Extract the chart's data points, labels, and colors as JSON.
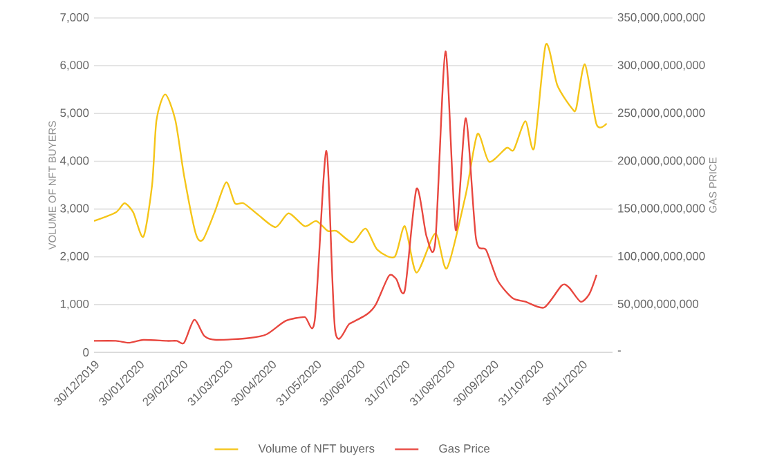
{
  "chart_data": {
    "type": "line",
    "ylabel": "VOLUME OF NFT BUYERS",
    "y2label": "GAS PRICE",
    "x": [
      "2019-12-30",
      "2020-01-14",
      "2020-01-20",
      "2020-01-26",
      "2020-02-02",
      "2020-02-08",
      "2020-02-11",
      "2020-02-17",
      "2020-02-24",
      "2020-03-01",
      "2020-03-09",
      "2020-03-14",
      "2020-03-22",
      "2020-03-30",
      "2020-04-05",
      "2020-04-11",
      "2020-04-21",
      "2020-05-03",
      "2020-05-12",
      "2020-05-23",
      "2020-05-31",
      "2020-06-08",
      "2020-06-14",
      "2020-06-25",
      "2020-07-04",
      "2020-07-12",
      "2020-07-24",
      "2020-07-31",
      "2020-08-08",
      "2020-08-21",
      "2020-08-29",
      "2020-09-11",
      "2020-09-19",
      "2020-09-27",
      "2020-10-09",
      "2020-10-14",
      "2020-10-22",
      "2020-10-28",
      "2020-11-05",
      "2020-11-13",
      "2020-11-23",
      "2020-11-26",
      "2020-12-02",
      "2020-12-10",
      "2020-12-17"
    ],
    "series": [
      {
        "name": "Volume of NFT buyers",
        "color": "#f5c518",
        "values": [
          2750,
          2930,
          3120,
          2930,
          2420,
          3510,
          4860,
          5400,
          4860,
          3700,
          2490,
          2360,
          2930,
          3560,
          3120,
          3120,
          2880,
          2620,
          2910,
          2640,
          2750,
          2540,
          2540,
          2300,
          2590,
          2150,
          2000,
          2640,
          1670,
          2490,
          1760,
          3310,
          4570,
          3990,
          4280,
          4240,
          4840,
          4280,
          6440,
          5590,
          5110,
          5110,
          6030,
          4770,
          4790
        ]
      },
      {
        "name": "Gas Price",
        "color": "#e8473f",
        "axis": "y2",
        "x": [
          "2019-12-30",
          "2020-01-14",
          "2020-01-23",
          "2020-02-02",
          "2020-02-18",
          "2020-02-25",
          "2020-03-01",
          "2020-03-08",
          "2020-03-15",
          "2020-03-23",
          "2020-04-15",
          "2020-04-27",
          "2020-05-10",
          "2020-05-23",
          "2020-05-30",
          "2020-06-07",
          "2020-06-13",
          "2020-06-23",
          "2020-07-05",
          "2020-07-11",
          "2020-07-20",
          "2020-07-25",
          "2020-07-31",
          "2020-08-08",
          "2020-08-15",
          "2020-08-21",
          "2020-08-28",
          "2020-09-04",
          "2020-09-11",
          "2020-09-18",
          "2020-09-25",
          "2020-10-03",
          "2020-10-13",
          "2020-10-22",
          "2020-11-04",
          "2020-11-16",
          "2020-11-21",
          "2020-11-29",
          "2020-12-05",
          "2020-12-10"
        ],
        "values": [
          12000000000,
          12000000000,
          10000000000,
          13000000000,
          12000000000,
          12000000000,
          10000000000,
          34000000000,
          17000000000,
          13000000000,
          15000000000,
          19000000000,
          33000000000,
          37000000000,
          34000000000,
          211000000000,
          23000000000,
          30000000000,
          40000000000,
          50000000000,
          80000000000,
          77000000000,
          65000000000,
          171000000000,
          121000000000,
          116000000000,
          315000000000,
          128000000000,
          245000000000,
          119000000000,
          107000000000,
          75000000000,
          57000000000,
          53000000000,
          47000000000,
          70000000000,
          68000000000,
          53000000000,
          61000000000,
          81000000000
        ]
      }
    ],
    "xlim": [
      "2019-12-30",
      "2020-12-21"
    ],
    "xticks": [
      {
        "value": "2019-12-30",
        "label": "30/12/2019"
      },
      {
        "value": "2020-01-30",
        "label": "30/01/2020"
      },
      {
        "value": "2020-02-29",
        "label": "29/02/2020"
      },
      {
        "value": "2020-03-31",
        "label": "31/03/2020"
      },
      {
        "value": "2020-04-30",
        "label": "30/04/2020"
      },
      {
        "value": "2020-05-31",
        "label": "31/05/2020"
      },
      {
        "value": "2020-06-30",
        "label": "30/06/2020"
      },
      {
        "value": "2020-07-31",
        "label": "31/07/2020"
      },
      {
        "value": "2020-08-31",
        "label": "31/08/2020"
      },
      {
        "value": "2020-09-30",
        "label": "30/09/2020"
      },
      {
        "value": "2020-10-31",
        "label": "31/10/2020"
      },
      {
        "value": "2020-11-30",
        "label": "30/11/2020"
      }
    ],
    "ylim": [
      0,
      7000
    ],
    "yticks": [
      0,
      {
        "value": 1000,
        "label": "1,000"
      },
      {
        "value": 2000,
        "label": "2,000"
      },
      {
        "value": 3000,
        "label": "3,000"
      },
      {
        "value": 4000,
        "label": "4,000"
      },
      {
        "value": 5000,
        "label": "5,000"
      },
      {
        "value": 6000,
        "label": "6,000"
      },
      {
        "value": 7000,
        "label": "7,000"
      }
    ],
    "y2lim": [
      0,
      350000000000
    ],
    "y2ticks": [
      {
        "value": 0,
        "label": "-"
      },
      {
        "value": 50000000000,
        "label": "50,000,000,000"
      },
      {
        "value": 100000000000,
        "label": "100,000,000,000"
      },
      {
        "value": 150000000000,
        "label": "150,000,000,000"
      },
      {
        "value": 200000000000,
        "label": "200,000,000,000"
      },
      {
        "value": 250000000000,
        "label": "250,000,000,000"
      },
      {
        "value": 300000000000,
        "label": "300,000,000,000"
      },
      {
        "value": 350000000000,
        "label": "350,000,000,000"
      }
    ],
    "grid": "y",
    "legend": "bottom",
    "marker": "none",
    "line_style": "solid"
  }
}
